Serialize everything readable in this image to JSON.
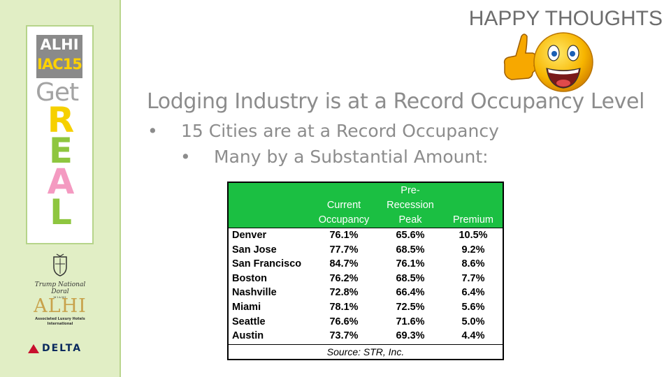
{
  "sidebar": {
    "logo_line1": "ALHI",
    "logo_line2": "IAC15",
    "get_text": "Get",
    "real_letters": [
      "R",
      "E",
      "A",
      "L"
    ],
    "real_colors": [
      "#f6d000",
      "#8ec63f",
      "#f49ac1",
      "#8ec63f"
    ],
    "trump_logo_text": "Trump National Doral",
    "trump_logo_sub": "MIAMI",
    "alhi_logo_text": "ALHI",
    "alhi_logo_sub": "Associated Luxury Hotels International",
    "delta_logo_text": "DELTA"
  },
  "header": {
    "title": "HAPPY THOUGHTS",
    "emoji_icon": "thumbs-up-smiley-icon"
  },
  "content": {
    "heading": "Lodging Industry is at a Record Occupancy Level",
    "bullet1": "15 Cities are at a Record Occupancy",
    "bullet2": "Many by a Substantial Amount:",
    "bullet_symbol": "•"
  },
  "table": {
    "header_bg": "#1bbf42",
    "col_headers": [
      [
        "",
        "",
        ""
      ],
      [
        "",
        "Current",
        "Occupancy"
      ],
      [
        "Pre-",
        "Recession",
        "Peak"
      ],
      [
        "",
        "",
        "Premium"
      ]
    ],
    "rows": [
      [
        "Denver",
        "76.1%",
        "65.6%",
        "10.5%"
      ],
      [
        "San Jose",
        "77.7%",
        "68.5%",
        "9.2%"
      ],
      [
        "San Francisco",
        "84.7%",
        "76.1%",
        "8.6%"
      ],
      [
        "Boston",
        "76.2%",
        "68.5%",
        "7.7%"
      ],
      [
        "Nashville",
        "72.8%",
        "66.4%",
        "6.4%"
      ],
      [
        "Miami",
        "78.1%",
        "72.5%",
        "5.6%"
      ],
      [
        "Seattle",
        "76.6%",
        "71.6%",
        "5.0%"
      ],
      [
        "Austin",
        "73.7%",
        "69.3%",
        "4.4%"
      ]
    ],
    "source": "Source: STR, Inc."
  }
}
